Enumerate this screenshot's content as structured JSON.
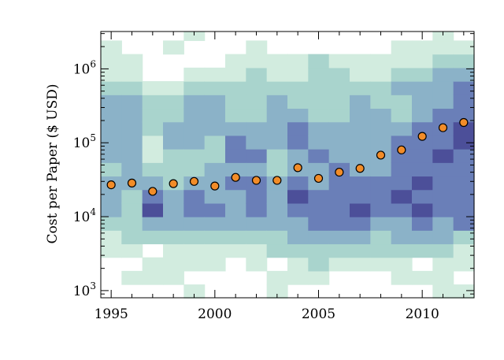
{
  "chart_data": {
    "type": "heatmap",
    "title": "",
    "xlabel": "",
    "ylabel": "Cost per Paper ($ USD)",
    "x_axis": {
      "range": [
        1994.5,
        2012.5
      ],
      "tick_values": [
        1995,
        2000,
        2005,
        2010
      ],
      "tick_labels": [
        "1995",
        "2000",
        "2005",
        "2010"
      ]
    },
    "y_axis": {
      "scale": "log",
      "range": [
        800,
        3200000
      ],
      "tick_values": [
        1000,
        10000,
        100000,
        1000000
      ],
      "tick_labels": [
        {
          "base": "10",
          "exp": "3"
        },
        {
          "base": "10",
          "exp": "4"
        },
        {
          "base": "10",
          "exp": "5"
        },
        {
          "base": "10",
          "exp": "6"
        }
      ]
    },
    "heatmap": {
      "years": [
        1995,
        1996,
        1997,
        1998,
        1999,
        2000,
        2001,
        2002,
        2003,
        2004,
        2005,
        2006,
        2007,
        2008,
        2009,
        2010,
        2011,
        2012
      ],
      "bin_edges_log10": [
        2.9,
        3.0833,
        3.2667,
        3.45,
        3.6333,
        3.8167,
        4.0,
        4.1833,
        4.3667,
        4.55,
        4.7333,
        4.9167,
        5.1,
        5.2833,
        5.4667,
        5.65,
        5.8333,
        6.0167,
        6.2,
        6.3833,
        6.5
      ],
      "levels": [
        [
          0,
          0,
          0,
          1,
          1,
          2,
          3,
          3,
          3,
          2,
          3,
          3,
          3,
          3,
          3,
          2,
          1,
          1,
          1,
          0
        ],
        [
          0,
          1,
          0,
          1,
          2,
          2,
          2,
          2,
          3,
          3,
          3,
          3,
          3,
          3,
          3,
          2,
          1,
          1,
          0,
          0
        ],
        [
          0,
          1,
          1,
          0,
          2,
          3,
          5,
          4,
          3,
          2,
          1,
          1,
          2,
          2,
          2,
          1,
          0,
          0,
          0,
          0
        ],
        [
          0,
          1,
          1,
          1,
          2,
          3,
          3,
          3,
          2,
          2,
          2,
          3,
          3,
          2,
          2,
          1,
          0,
          0,
          1,
          0
        ],
        [
          1,
          0,
          1,
          1,
          2,
          3,
          4,
          4,
          3,
          2,
          2,
          3,
          3,
          3,
          3,
          2,
          1,
          0,
          0,
          1
        ],
        [
          0,
          0,
          1,
          1,
          2,
          3,
          4,
          3,
          3,
          3,
          2,
          2,
          3,
          3,
          3,
          2,
          1,
          0,
          0,
          0
        ],
        [
          0,
          0,
          0,
          1,
          2,
          3,
          3,
          3,
          4,
          3,
          4,
          4,
          3,
          2,
          2,
          2,
          1,
          1,
          0,
          0
        ],
        [
          0,
          0,
          1,
          1,
          2,
          3,
          4,
          4,
          4,
          3,
          4,
          3,
          3,
          2,
          2,
          2,
          2,
          1,
          1,
          0
        ],
        [
          1,
          1,
          0,
          2,
          2,
          3,
          3,
          3,
          3,
          2,
          2,
          3,
          3,
          3,
          3,
          2,
          1,
          1,
          0,
          0
        ],
        [
          0,
          1,
          1,
          2,
          3,
          3,
          4,
          5,
          4,
          3,
          3,
          4,
          4,
          3,
          2,
          2,
          1,
          1,
          0,
          0
        ],
        [
          0,
          1,
          2,
          2,
          3,
          4,
          4,
          4,
          3,
          3,
          4,
          3,
          3,
          2,
          2,
          2,
          2,
          2,
          0,
          0
        ],
        [
          0,
          0,
          1,
          2,
          3,
          4,
          4,
          4,
          4,
          4,
          3,
          3,
          3,
          2,
          2,
          2,
          2,
          1,
          0,
          0
        ],
        [
          0,
          0,
          1,
          2,
          3,
          4,
          5,
          4,
          4,
          3,
          3,
          3,
          3,
          3,
          3,
          2,
          1,
          1,
          0,
          0
        ],
        [
          0,
          0,
          1,
          2,
          2,
          3,
          4,
          4,
          4,
          3,
          3,
          3,
          3,
          3,
          2,
          2,
          1,
          1,
          0,
          0
        ],
        [
          0,
          1,
          1,
          2,
          3,
          3,
          4,
          5,
          4,
          4,
          4,
          4,
          3,
          2,
          2,
          3,
          2,
          1,
          1,
          0
        ],
        [
          0,
          1,
          0,
          2,
          3,
          4,
          5,
          4,
          5,
          4,
          4,
          4,
          4,
          3,
          3,
          3,
          2,
          1,
          1,
          0
        ],
        [
          1,
          1,
          1,
          2,
          3,
          3,
          4,
          4,
          4,
          4,
          5,
          4,
          4,
          4,
          3,
          3,
          3,
          2,
          1,
          1
        ],
        [
          1,
          0,
          1,
          1,
          2,
          4,
          4,
          4,
          4,
          4,
          4,
          5,
          5,
          4,
          4,
          4,
          3,
          2,
          1,
          0
        ]
      ],
      "colors": [
        "#ffffff",
        "#d2ecdf",
        "#a9d4cd",
        "#8bb2c8",
        "#6a7fb8",
        "#4c4f99"
      ]
    },
    "series": [
      {
        "marker": "circle",
        "color": "#f28c28",
        "x": [
          1995,
          1996,
          1997,
          1998,
          1999,
          2000,
          2001,
          2002,
          2003,
          2004,
          2005,
          2006,
          2007,
          2008,
          2009,
          2010,
          2011,
          2012
        ],
        "y": [
          27000,
          28500,
          22000,
          28000,
          30000,
          26000,
          34000,
          31000,
          31000,
          46000,
          33000,
          40000,
          45000,
          68000,
          80000,
          122000,
          160000,
          188000
        ]
      }
    ],
    "grid": false,
    "legend": "none"
  }
}
